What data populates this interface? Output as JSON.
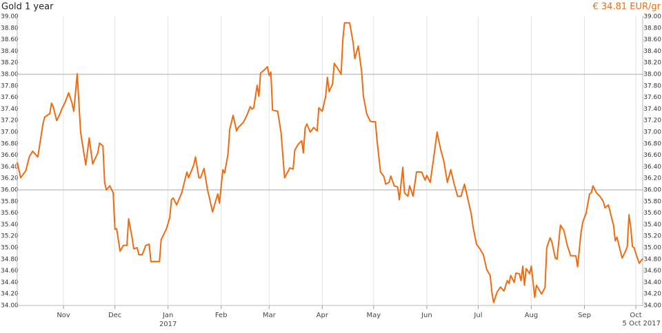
{
  "chart_data": {
    "type": "line",
    "title": "Gold 1 year",
    "price_label": "€ 34.81 EUR/gr",
    "year_label": "2017",
    "end_label": "5 Oct 2017",
    "xlim": [
      "2016-10-05",
      "2017-10-05"
    ],
    "xticks": [
      {
        "value": "2016-11-01",
        "label": "Nov"
      },
      {
        "value": "2016-12-01",
        "label": "Dec"
      },
      {
        "value": "2017-01-01",
        "label": "Jan"
      },
      {
        "value": "2017-02-01",
        "label": "Feb"
      },
      {
        "value": "2017-03-01",
        "label": "Mar"
      },
      {
        "value": "2017-04-01",
        "label": "Apr"
      },
      {
        "value": "2017-05-01",
        "label": "May"
      },
      {
        "value": "2017-06-01",
        "label": "Jun"
      },
      {
        "value": "2017-07-01",
        "label": "Jul"
      },
      {
        "value": "2017-08-01",
        "label": "Aug"
      },
      {
        "value": "2017-09-01",
        "label": "Sep"
      },
      {
        "value": "2017-10-01",
        "label": "Oct"
      }
    ],
    "ylim": [
      34,
      39
    ],
    "yticks": [
      {
        "value": 34,
        "label": "34.00"
      },
      {
        "value": 34.2,
        "label": "34.20"
      },
      {
        "value": 34.4,
        "label": "34.40"
      },
      {
        "value": 34.6,
        "label": "34.60"
      },
      {
        "value": 34.8,
        "label": "34.80"
      },
      {
        "value": 35,
        "label": "35.00"
      },
      {
        "value": 35.2,
        "label": "35.20"
      },
      {
        "value": 35.4,
        "label": "35.40"
      },
      {
        "value": 35.6,
        "label": "35.60"
      },
      {
        "value": 35.8,
        "label": "35.80"
      },
      {
        "value": 36,
        "label": "36.00"
      },
      {
        "value": 36.2,
        "label": "36.20"
      },
      {
        "value": 36.4,
        "label": "36.40"
      },
      {
        "value": 36.6,
        "label": "36.60"
      },
      {
        "value": 36.8,
        "label": "36.80"
      },
      {
        "value": 37,
        "label": "37.00"
      },
      {
        "value": 37.2,
        "label": "37.20"
      },
      {
        "value": 37.4,
        "label": "37.40"
      },
      {
        "value": 37.6,
        "label": "37.60"
      },
      {
        "value": 37.8,
        "label": "37.80"
      },
      {
        "value": 38,
        "label": "38.00"
      },
      {
        "value": 38.2,
        "label": "38.20"
      },
      {
        "value": 38.4,
        "label": "38.40"
      },
      {
        "value": 38.6,
        "label": "38.60"
      },
      {
        "value": 38.8,
        "label": "38.80"
      },
      {
        "value": 39,
        "label": "39.00"
      }
    ],
    "hgrid": [
      36,
      38
    ],
    "grid": true,
    "series": [
      {
        "color": "#f26a10",
        "x": [
          "2016-10-05",
          "2016-10-07",
          "2016-10-10",
          "2016-10-12",
          "2016-10-14",
          "2016-10-17",
          "2016-10-18",
          "2016-10-20",
          "2016-10-21",
          "2016-10-24",
          "2016-10-25",
          "2016-10-26",
          "2016-10-28",
          "2016-10-30",
          "2016-10-31",
          "2016-11-02",
          "2016-11-04",
          "2016-11-06",
          "2016-11-07",
          "2016-11-09",
          "2016-11-11",
          "2016-11-14",
          "2016-11-16",
          "2016-11-18",
          "2016-11-21",
          "2016-11-22",
          "2016-11-24",
          "2016-11-25",
          "2016-11-26",
          "2016-11-28",
          "2016-11-30",
          "2016-12-01",
          "2016-12-02",
          "2016-12-04",
          "2016-12-06",
          "2016-12-08",
          "2016-12-09",
          "2016-12-11",
          "2016-12-12",
          "2016-12-14",
          "2016-12-15",
          "2016-12-17",
          "2016-12-19",
          "2016-12-21",
          "2016-12-22",
          "2016-12-24",
          "2016-12-27",
          "2016-12-28",
          "2016-12-31",
          "2017-01-02",
          "2017-01-03",
          "2017-01-04",
          "2017-01-06",
          "2017-01-07",
          "2017-01-09",
          "2017-01-12",
          "2017-01-13",
          "2017-01-16",
          "2017-01-17",
          "2017-01-19",
          "2017-01-20",
          "2017-01-22",
          "2017-01-24",
          "2017-01-27",
          "2017-01-29",
          "2017-01-30",
          "2017-01-31",
          "2017-02-02",
          "2017-02-03",
          "2017-02-05",
          "2017-02-06",
          "2017-02-08",
          "2017-02-10",
          "2017-02-11",
          "2017-02-14",
          "2017-02-16",
          "2017-02-18",
          "2017-02-19",
          "2017-02-20",
          "2017-02-22",
          "2017-02-23",
          "2017-02-24",
          "2017-02-26",
          "2017-02-28",
          "2017-03-01",
          "2017-03-02",
          "2017-03-03",
          "2017-03-06",
          "2017-03-08",
          "2017-03-10",
          "2017-03-11",
          "2017-03-13",
          "2017-03-15",
          "2017-03-16",
          "2017-03-18",
          "2017-03-20",
          "2017-03-21",
          "2017-03-22",
          "2017-03-23",
          "2017-03-25",
          "2017-03-27",
          "2017-03-29",
          "2017-03-30",
          "2017-04-01",
          "2017-04-03",
          "2017-04-04",
          "2017-04-05",
          "2017-04-07",
          "2017-04-08",
          "2017-04-10",
          "2017-04-12",
          "2017-04-13",
          "2017-04-14",
          "2017-04-17",
          "2017-04-19",
          "2017-04-20",
          "2017-04-22",
          "2017-04-24",
          "2017-04-25",
          "2017-04-27",
          "2017-04-29",
          "2017-04-30",
          "2017-05-02",
          "2017-05-03",
          "2017-05-05",
          "2017-05-07",
          "2017-05-08",
          "2017-05-10",
          "2017-05-11",
          "2017-05-13",
          "2017-05-15",
          "2017-05-16",
          "2017-05-18",
          "2017-05-19",
          "2017-05-21",
          "2017-05-22",
          "2017-05-24",
          "2017-05-26",
          "2017-05-29",
          "2017-05-31",
          "2017-06-01",
          "2017-06-03",
          "2017-06-05",
          "2017-06-07",
          "2017-06-09",
          "2017-06-11",
          "2017-06-13",
          "2017-06-15",
          "2017-06-17",
          "2017-06-19",
          "2017-06-21",
          "2017-06-23",
          "2017-06-26",
          "2017-06-27",
          "2017-06-28",
          "2017-06-30",
          "2017-07-02",
          "2017-07-04",
          "2017-07-06",
          "2017-07-08",
          "2017-07-09",
          "2017-07-10",
          "2017-07-12",
          "2017-07-14",
          "2017-07-16",
          "2017-07-18",
          "2017-07-19",
          "2017-07-20",
          "2017-07-22",
          "2017-07-23",
          "2017-07-25",
          "2017-07-26",
          "2017-07-27",
          "2017-07-28",
          "2017-07-29",
          "2017-07-31",
          "2017-08-01",
          "2017-08-03",
          "2017-08-04",
          "2017-08-07",
          "2017-08-09",
          "2017-08-10",
          "2017-08-12",
          "2017-08-13",
          "2017-08-15",
          "2017-08-16",
          "2017-08-18",
          "2017-08-20",
          "2017-08-22",
          "2017-08-24",
          "2017-08-27",
          "2017-08-28",
          "2017-08-30",
          "2017-08-31",
          "2017-09-02",
          "2017-09-04",
          "2017-09-05",
          "2017-09-06",
          "2017-09-08",
          "2017-09-10",
          "2017-09-12",
          "2017-09-13",
          "2017-09-15",
          "2017-09-17",
          "2017-09-18",
          "2017-09-19",
          "2017-09-20",
          "2017-09-23",
          "2017-09-25",
          "2017-09-26",
          "2017-09-27",
          "2017-09-28",
          "2017-09-29",
          "2017-09-30",
          "2017-10-01",
          "2017-10-03",
          "2017-10-05"
        ],
        "values": [
          36.48,
          36.21,
          36.33,
          36.57,
          36.67,
          36.57,
          36.76,
          37.14,
          37.26,
          37.32,
          37.5,
          37.44,
          37.2,
          37.32,
          37.4,
          37.52,
          37.68,
          37.5,
          37.36,
          38.01,
          36.99,
          36.43,
          36.9,
          36.45,
          36.64,
          36.81,
          36.76,
          36.13,
          36.0,
          36.07,
          35.95,
          35.32,
          35.33,
          34.94,
          35.04,
          35.04,
          35.5,
          35.18,
          34.98,
          35.0,
          34.88,
          34.88,
          35.04,
          35.06,
          34.76,
          34.76,
          34.76,
          35.14,
          35.32,
          35.52,
          35.83,
          35.86,
          35.74,
          35.81,
          35.95,
          36.31,
          36.21,
          36.43,
          36.57,
          36.21,
          36.21,
          36.37,
          36.01,
          35.62,
          35.83,
          35.93,
          35.77,
          36.35,
          36.29,
          36.62,
          37.05,
          37.29,
          37.02,
          37.08,
          37.17,
          37.29,
          37.44,
          37.4,
          37.42,
          37.81,
          37.62,
          38.02,
          38.07,
          38.13,
          37.98,
          38.04,
          37.38,
          37.36,
          36.98,
          36.21,
          36.26,
          36.38,
          36.36,
          36.69,
          36.79,
          36.85,
          36.64,
          37.07,
          37.14,
          37.0,
          37.08,
          37.02,
          37.42,
          37.36,
          37.62,
          37.95,
          37.7,
          37.83,
          38.19,
          38.1,
          38.0,
          38.6,
          38.89,
          38.89,
          38.55,
          38.27,
          38.49,
          38.04,
          37.62,
          37.31,
          37.19,
          37.18,
          37.18,
          36.85,
          36.31,
          36.23,
          36.1,
          36.13,
          36.24,
          36.07,
          36.05,
          35.83,
          36.39,
          35.95,
          35.89,
          36.07,
          35.89,
          36.31,
          36.31,
          36.17,
          36.25,
          36.13,
          36.55,
          37.0,
          36.71,
          36.49,
          36.13,
          36.35,
          36.1,
          35.89,
          35.89,
          36.1,
          35.71,
          35.57,
          35.36,
          35.06,
          34.98,
          34.88,
          34.62,
          34.52,
          34.23,
          34.05,
          34.23,
          34.32,
          34.25,
          34.43,
          34.38,
          34.52,
          34.4,
          34.56,
          34.55,
          34.43,
          34.68,
          34.35,
          34.64,
          34.55,
          34.68,
          34.14,
          34.35,
          34.2,
          34.31,
          35.0,
          35.17,
          35.1,
          34.82,
          34.8,
          35.39,
          35.3,
          35.04,
          34.86,
          34.86,
          34.67,
          35.26,
          35.44,
          35.6,
          35.93,
          35.95,
          36.07,
          35.95,
          35.89,
          35.8,
          35.69,
          35.74,
          35.5,
          35.39,
          35.12,
          35.18,
          34.82,
          34.94,
          35.02,
          35.57,
          35.36,
          35.02,
          35.0,
          34.9,
          34.73,
          34.81
        ]
      }
    ]
  }
}
